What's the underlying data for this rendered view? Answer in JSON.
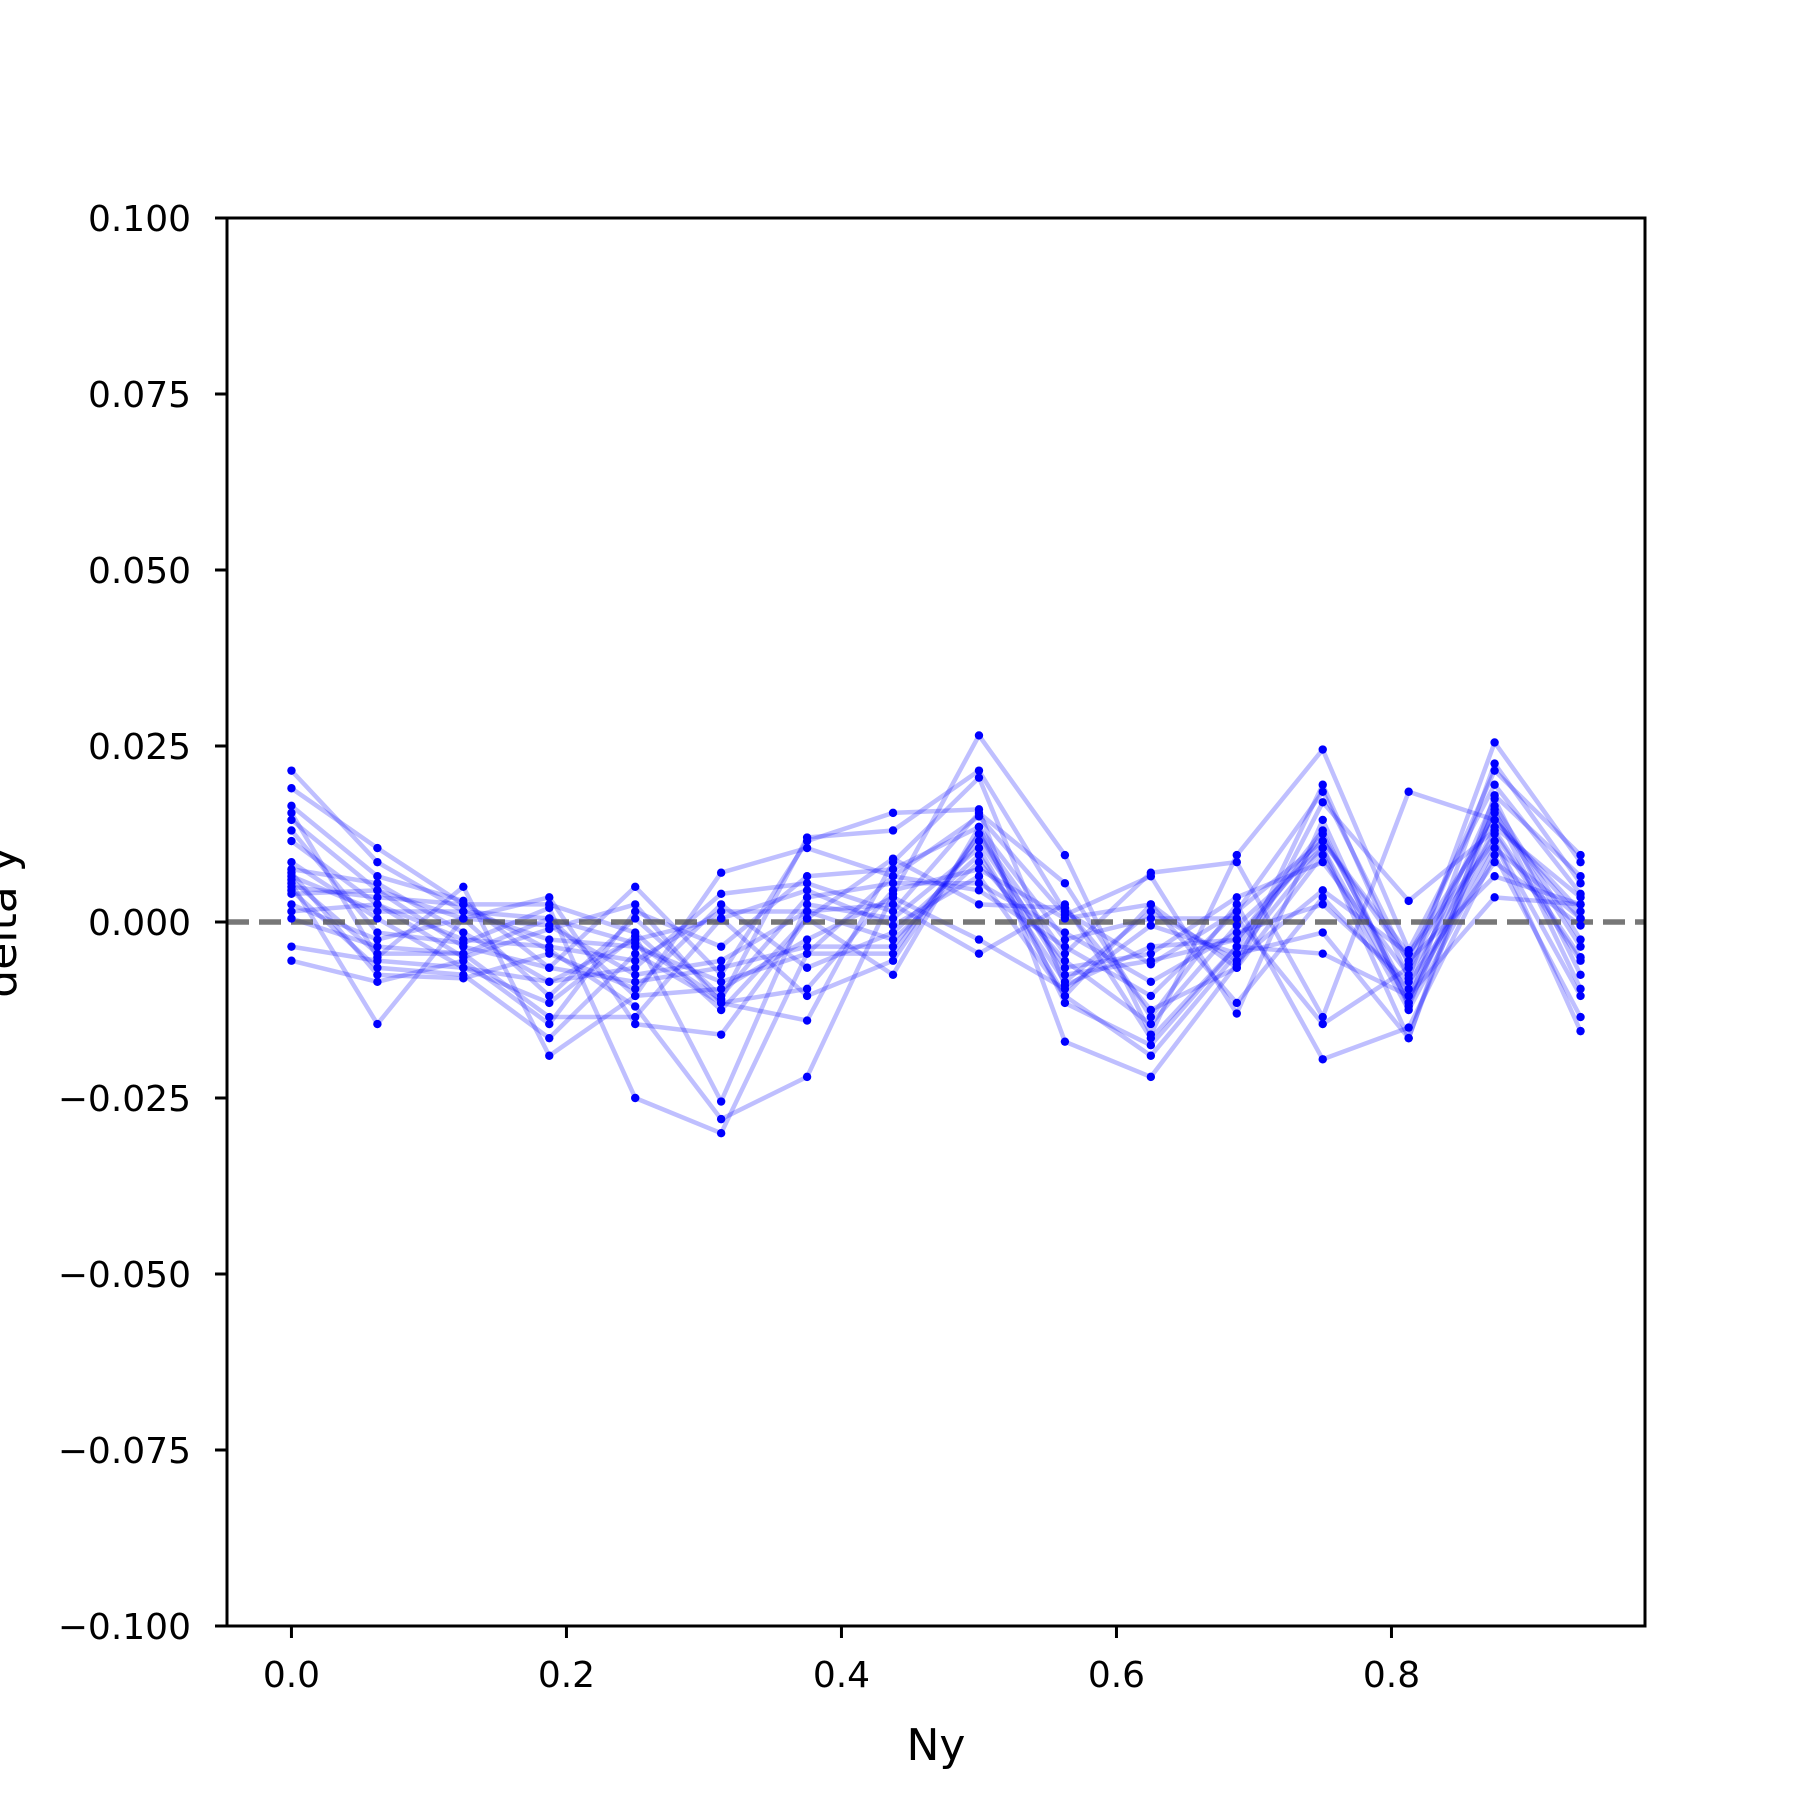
{
  "chart_data": {
    "type": "line",
    "title": "",
    "xlabel": "Ny",
    "ylabel": "delta y",
    "xlim": [
      -0.046875,
      0.984375
    ],
    "ylim": [
      -0.1,
      0.1
    ],
    "xticks": [
      0.0,
      0.2,
      0.4,
      0.6,
      0.8
    ],
    "xtick_labels": [
      "0.0",
      "0.2",
      "0.4",
      "0.6",
      "0.8"
    ],
    "yticks": [
      0.1,
      0.075,
      0.05,
      0.025,
      0.0,
      -0.025,
      -0.05,
      -0.075,
      -0.1
    ],
    "ytick_labels": [
      "0.100",
      "0.075",
      "0.050",
      "0.025",
      "0.000",
      "−0.025",
      "−0.050",
      "−0.075",
      "−0.100"
    ],
    "grid": false,
    "legend": "none",
    "series_color": "#0000ff",
    "series_alpha": 0.25,
    "reference_line": {
      "y": 0.0,
      "style": "dashed",
      "color": "#555555"
    },
    "x": [
      0.0,
      0.0625,
      0.125,
      0.1875,
      0.25,
      0.3125,
      0.375,
      0.4375,
      0.5,
      0.5625,
      0.625,
      0.6875,
      0.75,
      0.8125,
      0.875,
      0.9375
    ],
    "series": [
      {
        "values": [
          0.0215,
          0.0085,
          0.0015,
          0.0005,
          -0.003,
          -0.011,
          0.012,
          0.013,
          0.0215,
          0.0015,
          -0.006,
          0.0015,
          0.0185,
          -0.006,
          0.0215,
          0.0095
        ]
      },
      {
        "values": [
          0.019,
          0.0105,
          0.0025,
          -0.004,
          -0.012,
          -0.028,
          -0.022,
          0.004,
          0.0265,
          0.0095,
          -0.016,
          0.0095,
          0.0245,
          -0.004,
          0.0195,
          0.004
        ]
      },
      {
        "values": [
          0.0165,
          0.0065,
          0.003,
          -0.0065,
          0.005,
          -0.0075,
          0.0115,
          0.0155,
          0.016,
          -0.017,
          -0.022,
          -0.006,
          0.0195,
          -0.008,
          0.0255,
          0.0085
        ]
      },
      {
        "values": [
          0.0155,
          -0.005,
          0.005,
          -0.019,
          -0.0105,
          0.007,
          0.0105,
          0.0065,
          0.015,
          0.001,
          0.0065,
          -0.013,
          0.0145,
          -0.012,
          0.016,
          -0.0095
        ]
      },
      {
        "values": [
          0.0145,
          0.0045,
          0.0005,
          0.0035,
          -0.0145,
          -0.016,
          0.0005,
          0.009,
          0.0025,
          0.002,
          -0.0125,
          -0.0065,
          0.017,
          0.003,
          0.013,
          -0.005
        ]
      },
      {
        "values": [
          0.013,
          -0.0015,
          -0.003,
          0.002,
          -0.025,
          -0.03,
          -0.0045,
          -0.0045,
          0.0125,
          -0.0045,
          0.007,
          0.0085,
          -0.0135,
          0.0185,
          0.0145,
          0.0005
        ]
      },
      {
        "values": [
          0.0115,
          0.0025,
          -0.005,
          -0.001,
          0.0025,
          -0.0115,
          -0.014,
          0.0085,
          0.0205,
          -0.009,
          -0.0035,
          -0.0025,
          0.013,
          -0.0115,
          0.0225,
          0.0055
        ]
      },
      {
        "values": [
          0.0085,
          0.0005,
          -0.0065,
          -0.0115,
          -0.002,
          -0.0255,
          0.0025,
          0.0005,
          0.0105,
          -0.0105,
          -0.019,
          -0.0045,
          0.0105,
          -0.0165,
          0.018,
          0.0065
        ]
      },
      {
        "values": [
          0.0075,
          0.0055,
          -0.0015,
          -0.0085,
          -0.0065,
          0.004,
          0.0055,
          0.0015,
          0.0155,
          0.0055,
          -0.0135,
          0.0025,
          -0.0195,
          -0.015,
          0.0095,
          -0.0135
        ]
      },
      {
        "values": [
          0.007,
          -0.0075,
          -0.008,
          -0.0045,
          -0.0095,
          0.0025,
          -0.0065,
          -0.0015,
          0.0095,
          -0.0085,
          0.0015,
          -0.0055,
          0.0045,
          -0.0045,
          0.0115,
          -0.0155
        ]
      },
      {
        "values": [
          0.0065,
          0.0015,
          0.0015,
          -0.0025,
          -0.0035,
          -0.0085,
          -0.0045,
          0.0065,
          0.0045,
          -0.0035,
          -0.0105,
          0.0015,
          0.0115,
          -0.0055,
          0.0065,
          0.0025
        ]
      },
      {
        "values": [
          0.006,
          -0.0045,
          -0.0045,
          -0.0135,
          -0.0135,
          0.0005,
          0.0045,
          -0.0005,
          0.0065,
          -0.0105,
          0.0025,
          -0.0115,
          0.0035,
          -0.0095,
          0.0175,
          -0.0075
        ]
      },
      {
        "values": [
          0.0055,
          -0.0145,
          0.0005,
          -0.0005,
          -0.0075,
          -0.0055,
          0.0015,
          0.0025,
          -0.0045,
          0.0025,
          -0.0165,
          -0.0035,
          0.0125,
          -0.0105,
          0.0035,
          0.0025
        ]
      },
      {
        "values": [
          0.005,
          0.0035,
          0.0025,
          0.0025,
          -0.0015,
          -0.0125,
          0.0005,
          -0.0075,
          0.0135,
          -0.0025,
          0.0005,
          0.0005,
          -0.0145,
          -0.0065,
          0.0155,
          -0.0035
        ]
      },
      {
        "values": [
          0.0045,
          -0.0065,
          -0.0075,
          -0.0165,
          -0.0045,
          -0.0115,
          -0.0095,
          0.0045,
          0.0075,
          0.0005,
          0.0025,
          -0.0065,
          0.0095,
          -0.0125,
          0.0105,
          0.0005
        ]
      },
      {
        "values": [
          0.004,
          0.0045,
          -0.0035,
          -0.0065,
          -0.0085,
          -0.0065,
          -0.0035,
          -0.0035,
          0.0115,
          -0.0065,
          -0.0045,
          0.0035,
          0.0085,
          -0.0075,
          0.0125,
          -0.0055
        ]
      },
      {
        "values": [
          0.0025,
          -0.0025,
          0.0005,
          -0.0105,
          0.0005,
          -0.0105,
          0.0035,
          0.0055,
          0.0055,
          -0.0015,
          -0.0085,
          -0.0015,
          0.0025,
          -0.0085,
          0.0085,
          -0.0005
        ]
      },
      {
        "values": [
          0.0015,
          0.0025,
          -0.0025,
          -0.0035,
          -0.0055,
          0.0015,
          0.0015,
          -0.0025,
          0.0085,
          -0.0055,
          -0.0145,
          -0.0005,
          0.0105,
          -0.0115,
          0.0135,
          0.0035
        ]
      },
      {
        "values": [
          0.0005,
          -0.0035,
          -0.0045,
          0.0005,
          -0.0105,
          -0.0095,
          -0.0025,
          0.0035,
          -0.0025,
          -0.0095,
          -0.0005,
          -0.0045,
          -0.0015,
          -0.0165,
          0.0165,
          -0.0025
        ]
      },
      {
        "values": [
          -0.0035,
          -0.0055,
          -0.0065,
          -0.0085,
          -0.0025,
          0.0005,
          -0.0105,
          -0.0055,
          0.0125,
          -0.0075,
          -0.0055,
          -0.0025,
          0.0115,
          -0.0045,
          0.0145,
          0.0015
        ]
      },
      {
        "values": [
          -0.0055,
          -0.0085,
          -0.0055,
          -0.0145,
          0.0015,
          -0.0035,
          0.0065,
          0.0075,
          0.0135,
          -0.0115,
          -0.0175,
          -0.0035,
          -0.0045,
          -0.0105,
          0.0115,
          -0.0105
        ]
      }
    ]
  }
}
